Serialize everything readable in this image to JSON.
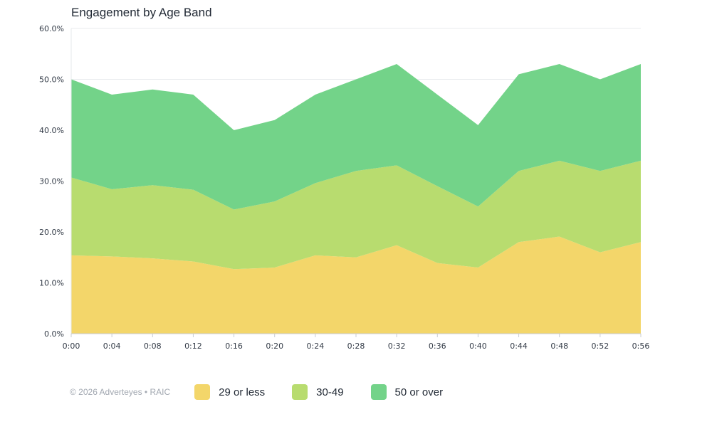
{
  "chart_data": {
    "type": "area",
    "stacked": true,
    "title": "Engagement by Age Band",
    "x": [
      "0:00",
      "0:04",
      "0:08",
      "0:12",
      "0:16",
      "0:20",
      "0:24",
      "0:28",
      "0:32",
      "0:36",
      "0:40",
      "0:44",
      "0:48",
      "0:52",
      "0:56"
    ],
    "yticks": [
      "0.0%",
      "10.0%",
      "20.0%",
      "30.0%",
      "40.0%",
      "50.0%",
      "60.0%"
    ],
    "ylim": [
      0,
      60
    ],
    "grid": "horizontal",
    "legend_position": "bottom",
    "series": [
      {
        "name": "29 or less",
        "color": "#f3d66a",
        "values": [
          15.4,
          15.2,
          14.8,
          14.2,
          12.7,
          13.0,
          15.4,
          15.0,
          17.4,
          13.9,
          13.0,
          18.0,
          19.1,
          16.0,
          18.0
        ]
      },
      {
        "name": "30-49",
        "color": "#b8dc6f",
        "values": [
          15.3,
          13.2,
          14.4,
          14.1,
          11.7,
          13.0,
          14.2,
          17.0,
          15.7,
          15.1,
          12.0,
          14.0,
          14.9,
          16.0,
          16.0
        ]
      },
      {
        "name": "50 or over",
        "color": "#73d389",
        "values": [
          19.3,
          18.6,
          18.8,
          18.7,
          15.6,
          16.0,
          17.4,
          18.0,
          19.9,
          18.0,
          16.0,
          19.0,
          19.0,
          18.0,
          19.0
        ]
      }
    ]
  },
  "footer": {
    "copyright": "© 2026 Adverteyes • RAIC"
  }
}
